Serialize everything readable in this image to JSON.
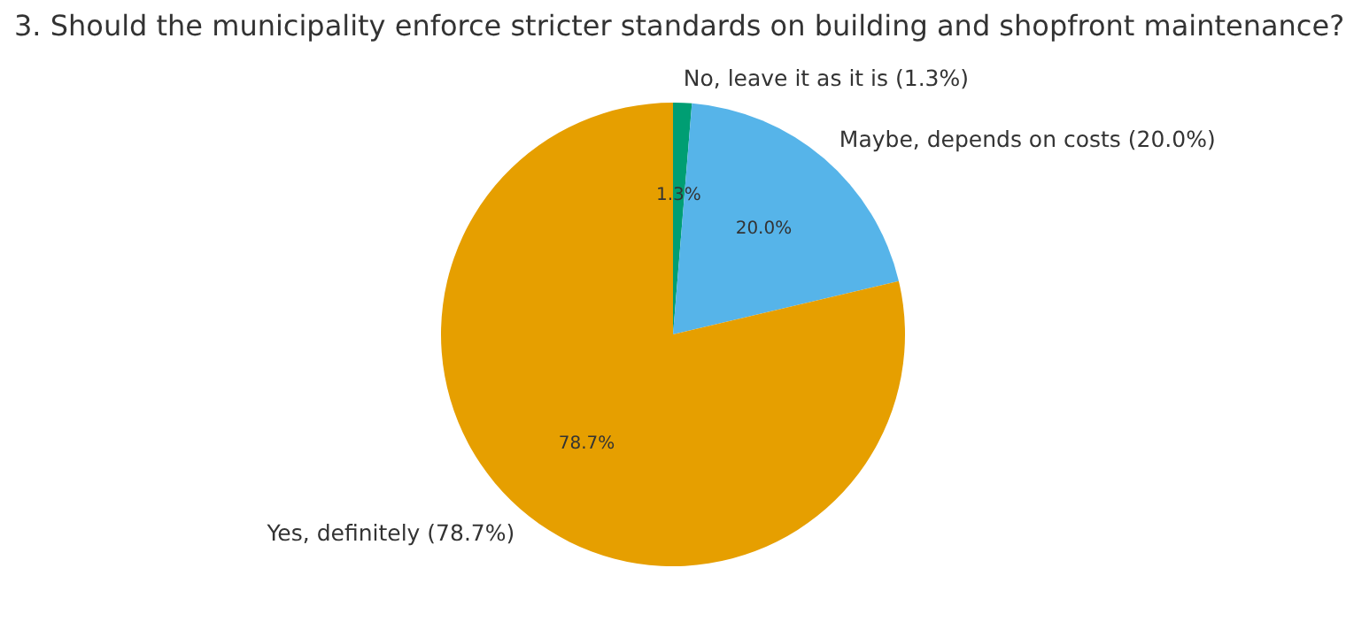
{
  "chart_data": {
    "type": "pie",
    "title": "3. Should the municipality enforce stricter standards on building and shopfront maintenance?",
    "categories": [
      "No, leave it as it is (1.3%)",
      "Maybe, depends on costs (20.0%)",
      "Yes, definitely (78.7%)"
    ],
    "values": [
      1.3,
      20.0,
      78.7
    ],
    "value_labels": [
      "1.3%",
      "20.0%",
      "78.7%"
    ],
    "colors": [
      "#009e73",
      "#56b4e9",
      "#e69f00"
    ]
  }
}
